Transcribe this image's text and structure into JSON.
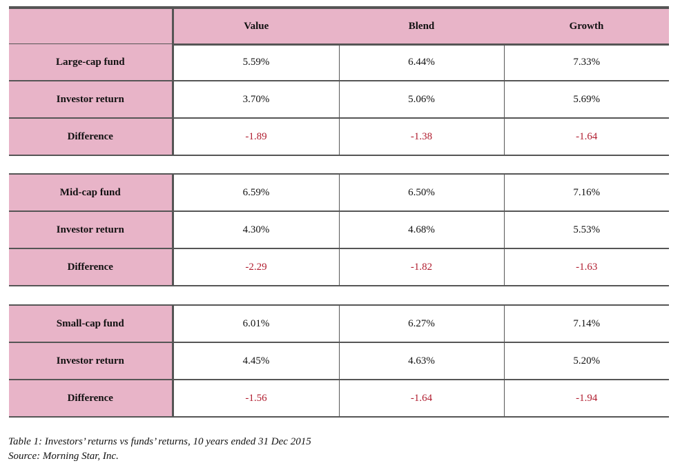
{
  "header": {
    "corner": "",
    "columns": [
      "Value",
      "Blend",
      "Growth"
    ]
  },
  "groups": [
    {
      "rows": [
        {
          "label": "Large-cap fund",
          "values": [
            "5.59%",
            "6.44%",
            "7.33%"
          ]
        },
        {
          "label": "Investor return",
          "values": [
            "3.70%",
            "5.06%",
            "5.69%"
          ]
        },
        {
          "label": "Difference",
          "values": [
            "-1.89",
            "-1.38",
            "-1.64"
          ]
        }
      ]
    },
    {
      "rows": [
        {
          "label": "Mid-cap fund",
          "values": [
            "6.59%",
            "6.50%",
            "7.16%"
          ]
        },
        {
          "label": "Investor return",
          "values": [
            "4.30%",
            "4.68%",
            "5.53%"
          ]
        },
        {
          "label": "Difference",
          "values": [
            "-2.29",
            "-1.82",
            "-1.63"
          ]
        }
      ]
    },
    {
      "rows": [
        {
          "label": "Small-cap fund",
          "values": [
            "6.01%",
            "6.27%",
            "7.14%"
          ]
        },
        {
          "label": "Investor return",
          "values": [
            "4.45%",
            "4.63%",
            "5.20%"
          ]
        },
        {
          "label": "Difference",
          "values": [
            "-1.56",
            "-1.64",
            "-1.94"
          ]
        }
      ]
    }
  ],
  "caption": {
    "line1": "Table 1: Investors’ returns vs funds’ returns, 10 years ended 31 Dec 2015",
    "line2": "Source: Morning Star, Inc."
  },
  "colors": {
    "label_fill": "#e8b4c8",
    "negative_text": "#b01c2e",
    "rule": "#555555"
  }
}
